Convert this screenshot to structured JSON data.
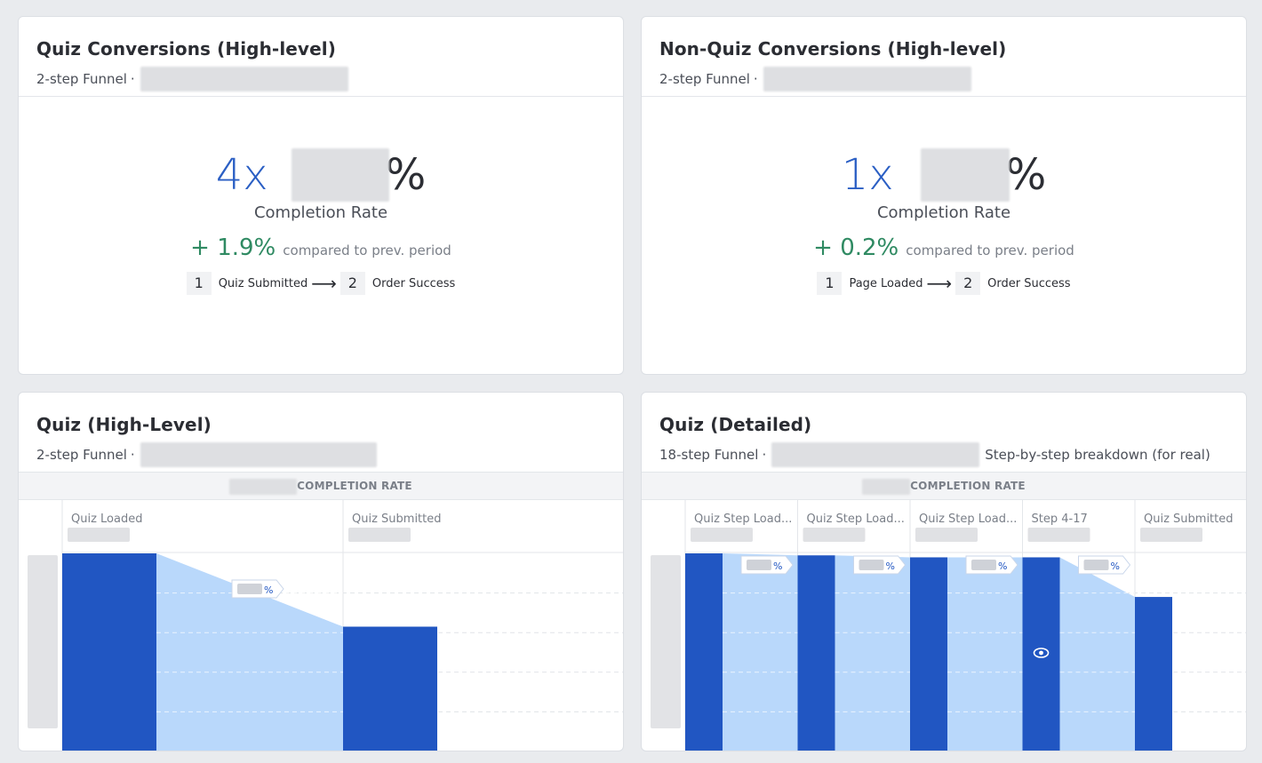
{
  "cards": [
    {
      "title": "Quiz Conversions (High-level)",
      "subtitle": "2-step Funnel",
      "sep": "·",
      "multiplier": "4x",
      "percent_sign": "%",
      "metric_label": "Completion Rate",
      "delta": "+ 1.9%",
      "delta_note": "compared to prev. period",
      "steps": [
        {
          "num": "1",
          "label": "Quiz Submitted"
        },
        {
          "num": "2",
          "label": "Order Success"
        }
      ],
      "arrow": "⟶"
    },
    {
      "title": "Non-Quiz Conversions (High-level)",
      "subtitle": "2-step Funnel",
      "sep": "·",
      "multiplier": "1x",
      "percent_sign": "%",
      "metric_label": "Completion Rate",
      "delta": "+ 0.2%",
      "delta_note": "compared to prev. period",
      "steps": [
        {
          "num": "1",
          "label": "Page Loaded"
        },
        {
          "num": "2",
          "label": "Order Success"
        }
      ],
      "arrow": "⟶"
    },
    {
      "title": "Quiz (High-Level)",
      "subtitle": "2-step Funnel",
      "sep": "·",
      "completion_label": "COMPLETION RATE"
    },
    {
      "title": "Quiz (Detailed)",
      "subtitle": "18-step Funnel",
      "sep": "·",
      "subtitle_extra": "Step-by-step breakdown (for real)",
      "completion_label": "COMPLETION RATE"
    }
  ],
  "colors": {
    "bar": "#2156c2",
    "flow": "#b9d8fb",
    "positive": "#2f8a62",
    "accent": "#2b5fc4"
  },
  "chart_data": [
    {
      "type": "bar",
      "categories": [
        "Quiz Loaded",
        "Quiz Submitted"
      ],
      "values": [
        100,
        63
      ],
      "ylim": [
        0,
        100
      ],
      "conversion_labels": [
        "%"
      ]
    },
    {
      "type": "bar",
      "categories": [
        "Quiz Step Load...",
        "Quiz Step Load...",
        "Quiz Step Load...",
        "Step 4-17",
        "Quiz Submitted"
      ],
      "values": [
        100,
        99,
        98,
        98,
        78
      ],
      "ylim": [
        0,
        100
      ],
      "conversion_labels": [
        "%",
        "%",
        "%",
        "%"
      ]
    }
  ]
}
